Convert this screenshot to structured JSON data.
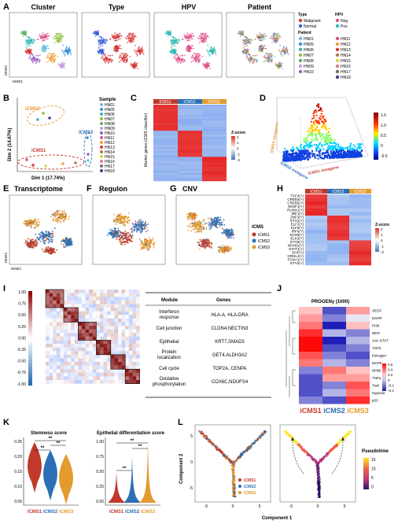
{
  "panel_labels": [
    "A",
    "B",
    "C",
    "D",
    "E",
    "F",
    "G",
    "H",
    "I",
    "J",
    "K",
    "L"
  ],
  "A": {
    "titles": [
      "Cluster",
      "Type",
      "HPV",
      "Patient"
    ],
    "xlabel": "tSNE1",
    "ylabel": "tSNE2",
    "legend_type_title": "Type",
    "legend_type": [
      {
        "label": "Malignant",
        "color": "#d63a3a"
      },
      {
        "label": "Normal",
        "color": "#3a5fd6"
      }
    ],
    "legend_hpv_title": "HPV",
    "legend_hpv": [
      {
        "label": "Neg",
        "color": "#e0508a"
      },
      {
        "label": "Pos",
        "color": "#2fb8b0"
      }
    ],
    "legend_patient_title": "Patient",
    "patients_col1": [
      "HN01",
      "HN05",
      "HN06",
      "HN07",
      "HN08",
      "HN09",
      "HN10"
    ],
    "patients_col2": [
      "HN11",
      "HN12",
      "HN13",
      "HN14",
      "HN15",
      "HN16",
      "HN17",
      "HN18"
    ]
  },
  "B": {
    "xlabel": "Dim 1 (17.74%)",
    "ylabel": "Dim 2 (14.67%)",
    "groups": [
      "iCMS3",
      "iCMS2",
      "iCMS1"
    ],
    "legend_title": "Sample",
    "samples": [
      "HN01",
      "HN05",
      "HN06",
      "HN07",
      "HN08",
      "HN09",
      "HN10",
      "HN11",
      "HN12",
      "HN13",
      "HN14",
      "HN15",
      "HN16",
      "HN17",
      "HN18"
    ]
  },
  "C": {
    "columns": [
      "iCMS1",
      "iCMS2",
      "iCMS3"
    ],
    "ylabel": "Marker genes (iCMS classifier)",
    "legend_title": "Z-score",
    "legend_ticks": [
      "2",
      "1",
      "0",
      "-1",
      "-2"
    ]
  },
  "D": {
    "axis_left": "iCMS3 metagene",
    "axis_mid": "iCMS2 metagene",
    "axis_right": "iCMS1 metagene",
    "legend_ticks": [
      "1.5",
      "1.0",
      "0.5",
      "0",
      "-0.5"
    ]
  },
  "E": {
    "title": "Transcriptome",
    "xlabel": "tSNE1",
    "ylabel": "tSNE2"
  },
  "F": {
    "title": "Regulon"
  },
  "G": {
    "title": "CNV"
  },
  "EG_legend": {
    "title": "iCMS",
    "items": [
      {
        "label": "iCMS1",
        "color": "#c0392b"
      },
      {
        "label": "iCMS2",
        "color": "#2c6fb5"
      },
      {
        "label": "iCMS3",
        "color": "#e39a2e"
      }
    ]
  },
  "H": {
    "columns": [
      "iCMS1",
      "iCMS2",
      "iCMS3"
    ],
    "genes": [
      "TCF4(+)",
      "CREB3(+)",
      "CREB5(+)",
      "NR2F1(+)",
      "RUNX1(+)",
      "IRF1(+)",
      "ZNF2(+)",
      "ETS1(+)",
      "ELF3(+)",
      "KLF5(+)",
      "IRF6(+)",
      "SOX9(+)",
      "ELK3(+)",
      "ETV6(+)",
      "NFKB1(+)",
      "STAT1(+)",
      "EHF(+)",
      "GRHL2(+)",
      "FOXA1(+)",
      "ETV4(+)"
    ],
    "legend_title": "Z-score",
    "legend_ticks": [
      "2",
      "1",
      "0",
      "-1",
      "-2"
    ]
  },
  "I": {
    "scale_ticks": [
      "1.00",
      "0.75",
      "0.50",
      "0.25",
      "0.00",
      "-0.25",
      "-0.50",
      "-0.75",
      "-1.00"
    ],
    "table_headers": [
      "Module",
      "Genes"
    ],
    "rows": [
      {
        "module": "Interferon response",
        "genes": "HLA-A, HLA-DRA"
      },
      {
        "module": "Cell junction",
        "genes": "CLDN4,NECTIN3"
      },
      {
        "module": "Epithelial",
        "genes": "KRT7,SMAD3"
      },
      {
        "module": "Protein localization",
        "genes": "GET4,ALDH3A2"
      },
      {
        "module": "Cell cycle",
        "genes": "TOP2A, CENPA"
      },
      {
        "module": "Oxidative phosphorylation",
        "genes": "COX6C,NDUFS4"
      }
    ]
  },
  "J": {
    "title": "PROGENy (1000)",
    "columns": [
      "iCMS1",
      "iCMS2",
      "iCMS3"
    ],
    "pathways": [
      "VEGF",
      "EGFR",
      "PI3K",
      "WNT",
      "JAK-STAT",
      "TGFb",
      "Estrogen",
      "MAPK",
      "NFkB",
      "TNFa",
      "Trail",
      "Hypoxia",
      "p53"
    ],
    "legend_ticks": [
      "0.6",
      "0.4",
      "0.2",
      "0",
      "-0.2",
      "-0.4"
    ]
  },
  "K": {
    "title1": "Stemness score",
    "title2": "Epithelial differentiation score",
    "y1_ticks": [
      "0.25",
      "0.20",
      "0.15",
      "0.10",
      "0.05"
    ],
    "y2_ticks": [
      "1.00",
      "0.75",
      "0.50",
      "0.25",
      "0.00"
    ],
    "groups": [
      "iCMS1",
      "iCMS2",
      "iCMS3"
    ],
    "sig": "**"
  },
  "L": {
    "xlabel": "Component 1",
    "ylabel": "Component 2",
    "x_ticks": [
      "-5",
      "0",
      "5"
    ],
    "y_ticks": [
      "5",
      "0",
      "-5"
    ],
    "legend": [
      "iCMS1",
      "iCMS2",
      "iCMS3"
    ],
    "pseudo_title": "Pseudotime",
    "pseudo_ticks": [
      "15",
      "10",
      "5",
      "0"
    ]
  },
  "colors": {
    "icms1": "#c0392b",
    "icms2": "#2c6fb5",
    "icms3": "#e39a2e",
    "heat_hi": "#d73027",
    "heat_lo": "#4575b4"
  }
}
